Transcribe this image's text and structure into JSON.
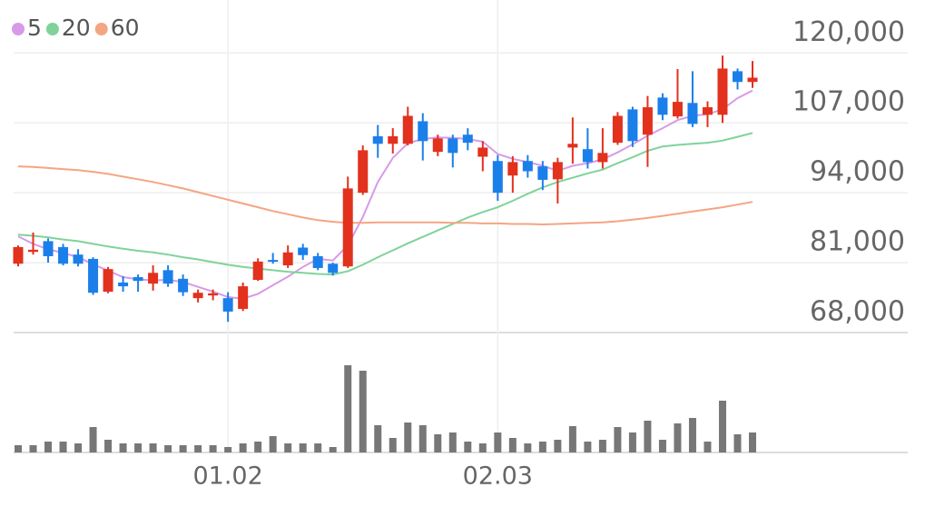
{
  "chart_data": {
    "type": "candlestick",
    "categories": [
      null,
      null,
      null,
      null,
      null,
      null,
      null,
      null,
      null,
      null,
      null,
      null,
      null,
      null,
      "01.02",
      null,
      null,
      null,
      null,
      null,
      null,
      null,
      null,
      null,
      null,
      null,
      null,
      null,
      null,
      null,
      null,
      null,
      "02.03",
      null,
      null,
      null,
      null,
      null,
      null,
      null,
      null,
      null,
      null,
      null,
      null,
      null,
      null,
      null,
      null,
      null
    ],
    "open": [
      80800,
      83000,
      85000,
      83900,
      82500,
      81700,
      75600,
      77300,
      78300,
      77100,
      79600,
      78000,
      74400,
      74900,
      74400,
      72400,
      77800,
      81500,
      80500,
      83800,
      82200,
      80800,
      80300,
      94000,
      104500,
      103100,
      103100,
      107300,
      101600,
      104100,
      104800,
      100700,
      99900,
      97200,
      99900,
      98900,
      96500,
      102400,
      102100,
      99700,
      103300,
      109500,
      104800,
      111700,
      108200,
      110700,
      108500,
      108500,
      116600,
      114600
    ],
    "high": [
      84200,
      86600,
      85500,
      84500,
      83500,
      82000,
      80200,
      78500,
      78800,
      80500,
      80500,
      78800,
      76000,
      76000,
      75500,
      77300,
      81800,
      82800,
      84200,
      84500,
      82800,
      81000,
      97000,
      102800,
      106600,
      106000,
      110000,
      108800,
      104800,
      104800,
      106000,
      103600,
      101000,
      100800,
      101000,
      99900,
      100500,
      108000,
      106000,
      106000,
      109000,
      110000,
      112000,
      112500,
      117000,
      116600,
      111000,
      119500,
      117100,
      118500
    ],
    "low": [
      80300,
      82500,
      81000,
      80500,
      80300,
      75000,
      75300,
      75600,
      75600,
      75800,
      76500,
      74800,
      73600,
      74000,
      70000,
      72000,
      77600,
      80800,
      80000,
      81500,
      79600,
      78600,
      80000,
      93600,
      100500,
      101300,
      102800,
      100000,
      100800,
      98700,
      101900,
      98000,
      92500,
      94000,
      96800,
      94500,
      92000,
      99400,
      98500,
      98500,
      102900,
      102500,
      98800,
      107500,
      107800,
      106200,
      106200,
      107000,
      113200,
      113500
    ],
    "close": [
      83900,
      83400,
      82200,
      80800,
      80800,
      75400,
      79800,
      76600,
      77600,
      79100,
      77100,
      75500,
      75400,
      75300,
      71900,
      76600,
      81200,
      81200,
      82900,
      82400,
      80000,
      79100,
      94800,
      101900,
      103100,
      104500,
      108300,
      103600,
      104100,
      101400,
      103300,
      102400,
      94000,
      99700,
      98000,
      96400,
      99700,
      103100,
      99700,
      101400,
      108300,
      103600,
      109900,
      108500,
      110900,
      106800,
      109900,
      117100,
      114600,
      115400
    ],
    "volume": [
      8,
      8,
      12,
      12,
      10,
      28,
      14,
      10,
      10,
      10,
      8,
      8,
      8,
      8,
      6,
      10,
      12,
      18,
      10,
      10,
      10,
      6,
      96,
      90,
      30,
      16,
      33,
      30,
      20,
      22,
      12,
      10,
      22,
      16,
      10,
      12,
      14,
      29,
      12,
      14,
      28,
      22,
      35,
      14,
      32,
      38,
      12,
      57,
      20,
      22
    ],
    "vlim": [
      0,
      100
    ],
    "up_color": "#e2311d",
    "down_color": "#1b7fea",
    "volume_color": "#777777",
    "series": [
      {
        "name": "5",
        "color": "#d89ae8",
        "values": [
          85900,
          84500,
          83500,
          82800,
          82000,
          80700,
          79500,
          78300,
          77900,
          77700,
          77800,
          77400,
          76500,
          75600,
          74600,
          74300,
          75200,
          76800,
          78400,
          80200,
          81700,
          81400,
          84200,
          89500,
          96000,
          100500,
          103200,
          104000,
          104300,
          104200,
          104000,
          103500,
          101200,
          100300,
          99700,
          99000,
          98100,
          99000,
          99500,
          100200,
          101500,
          103000,
          104600,
          106000,
          107500,
          108300,
          108600,
          109500,
          111600,
          113000
        ]
      },
      {
        "name": "20",
        "color": "#7fd39a",
        "values": [
          86200,
          86000,
          85700,
          85300,
          85000,
          84500,
          84000,
          83600,
          83200,
          82900,
          82500,
          82000,
          81600,
          81100,
          80600,
          80200,
          79900,
          79600,
          79300,
          79100,
          78900,
          78800,
          79400,
          80600,
          82000,
          83300,
          84600,
          85800,
          87000,
          88200,
          89400,
          90400,
          91300,
          92500,
          93800,
          95000,
          96000,
          96800,
          97600,
          98300,
          99500,
          100600,
          101800,
          102600,
          102900,
          103100,
          103300,
          103700,
          104400,
          105100
        ]
      },
      {
        "name": "60",
        "color": "#f4a582",
        "values": [
          98900,
          98800,
          98600,
          98400,
          98200,
          97900,
          97500,
          97000,
          96500,
          96000,
          95400,
          94800,
          94100,
          93400,
          92700,
          92000,
          91300,
          90600,
          90000,
          89400,
          88900,
          88600,
          88400,
          88400,
          88500,
          88500,
          88500,
          88500,
          88500,
          88400,
          88400,
          88300,
          88300,
          88200,
          88200,
          88100,
          88200,
          88300,
          88400,
          88500,
          88700,
          89000,
          89300,
          89700,
          90100,
          90500,
          90900,
          91300,
          91800,
          92300
        ]
      }
    ],
    "ylim": [
      68000,
      129000
    ],
    "yticks": [
      {
        "value": 68000,
        "label": "68,000"
      },
      {
        "value": 81000,
        "label": "81,000"
      },
      {
        "value": 94000,
        "label": "94,000"
      },
      {
        "value": 107000,
        "label": "107,000"
      },
      {
        "value": 120000,
        "label": "120,000"
      }
    ],
    "grid": true
  }
}
